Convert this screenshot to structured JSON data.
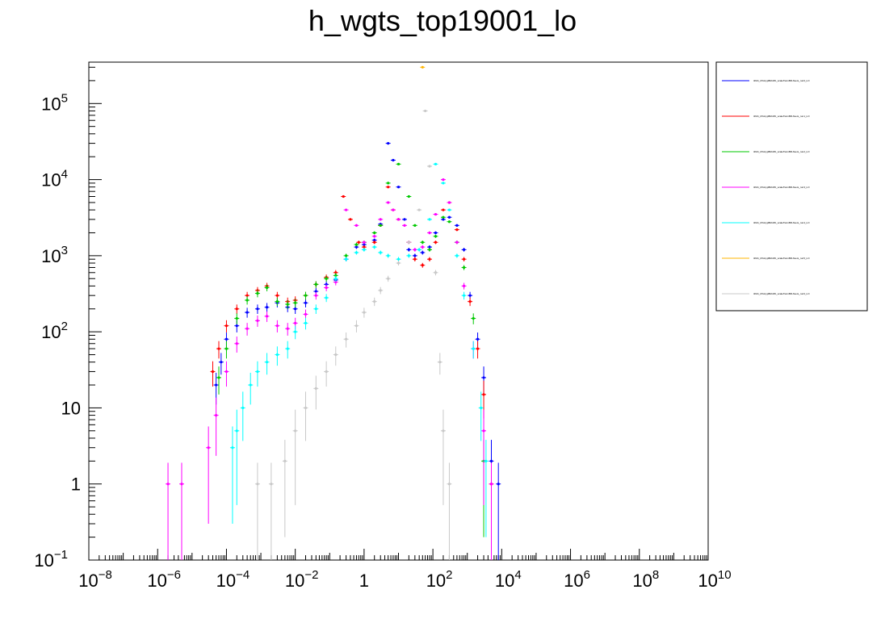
{
  "title": "h_wgts_top19001_lo",
  "chart_data": {
    "type": "scatter",
    "title": "h_wgts_top19001_lo",
    "xscale": "log",
    "yscale": "log",
    "xlim": [
      1e-08,
      10000000000.0
    ],
    "ylim": [
      0.1,
      350000
    ],
    "x_tick_labels": [
      {
        "base": "10",
        "exp": "−8"
      },
      {
        "base": "10",
        "exp": "−6"
      },
      {
        "base": "10",
        "exp": "−4"
      },
      {
        "base": "10",
        "exp": "−2"
      },
      {
        "base": "1",
        "exp": ""
      },
      {
        "base": "10",
        "exp": "2"
      },
      {
        "base": "10",
        "exp": "4"
      },
      {
        "base": "10",
        "exp": "6"
      },
      {
        "base": "10",
        "exp": "8"
      },
      {
        "base": "10",
        "exp": "10"
      }
    ],
    "y_tick_labels": [
      {
        "base": "10",
        "exp": "−1"
      },
      {
        "base": "1",
        "exp": ""
      },
      {
        "base": "10",
        "exp": ""
      },
      {
        "base": "10",
        "exp": "2"
      },
      {
        "base": "10",
        "exp": "3"
      },
      {
        "base": "10",
        "exp": "4"
      },
      {
        "base": "10",
        "exp": "5"
      }
    ],
    "legend_position": "right",
    "legend_entries": [
      "tthbb_ttToHypBbbWit_scaleTwimBR-6sets_run0_LO",
      "tthbb_ttToHypBbbWit_scaleTwimBR-6sets_run1_LO",
      "tthbb_ttToHypBbbWit_scaleTwimBR-6sets_run2_LO",
      "tthbb_ttToHypBbbWit_scaleTwimBR-6sets_run3_LO",
      "tthbb_ttToHypBbbWit_scaleTwimBR-6sets_run4_LO",
      "tthbb_ttToHypBbbWit_scaleTwimBR-6sets_run5_LO",
      "tthbb_ttToHypBbbWit_scaleTwimBR-6sets_run6_LO"
    ],
    "series": [
      {
        "color": "#0000ff",
        "points": [
          [
            5e-05,
            20
          ],
          [
            7e-05,
            40
          ],
          [
            0.0001,
            80
          ],
          [
            0.0002,
            120
          ],
          [
            0.0004,
            180
          ],
          [
            0.0008,
            200
          ],
          [
            0.0015,
            210
          ],
          [
            0.003,
            240
          ],
          [
            0.006,
            210
          ],
          [
            0.01,
            200
          ],
          [
            0.02,
            240
          ],
          [
            0.04,
            340
          ],
          [
            0.08,
            420
          ],
          [
            0.15,
            480
          ],
          [
            0.3,
            900
          ],
          [
            0.6,
            1300
          ],
          [
            1,
            1400
          ],
          [
            2,
            1600
          ],
          [
            3,
            2600
          ],
          [
            5,
            30000
          ],
          [
            7,
            18000
          ],
          [
            10,
            8000
          ],
          [
            15,
            3000
          ],
          [
            20,
            1200
          ],
          [
            30,
            1000
          ],
          [
            50,
            1100
          ],
          [
            80,
            1300
          ],
          [
            120,
            2000
          ],
          [
            200,
            3000
          ],
          [
            300,
            3200
          ],
          [
            500,
            2500
          ],
          [
            800,
            1200
          ],
          [
            1200,
            300
          ],
          [
            2000,
            80
          ],
          [
            3000,
            25
          ],
          [
            5000,
            2
          ],
          [
            8000,
            1
          ]
        ]
      },
      {
        "color": "#ff0000",
        "points": [
          [
            4e-05,
            30
          ],
          [
            6e-05,
            60
          ],
          [
            0.0001,
            120
          ],
          [
            0.0002,
            200
          ],
          [
            0.0004,
            300
          ],
          [
            0.0008,
            350
          ],
          [
            0.0015,
            400
          ],
          [
            0.003,
            300
          ],
          [
            0.006,
            250
          ],
          [
            0.01,
            260
          ],
          [
            0.02,
            300
          ],
          [
            0.04,
            420
          ],
          [
            0.08,
            520
          ],
          [
            0.15,
            600
          ],
          [
            0.25,
            6000
          ],
          [
            0.4,
            3000
          ],
          [
            0.7,
            1500
          ],
          [
            1,
            1300
          ],
          [
            2,
            1500
          ],
          [
            3,
            2500
          ],
          [
            5,
            8000
          ],
          [
            7,
            4000
          ],
          [
            10,
            3000
          ],
          [
            20,
            1500
          ],
          [
            30,
            900
          ],
          [
            50,
            750
          ],
          [
            80,
            900
          ],
          [
            120,
            1500
          ],
          [
            200,
            4000
          ],
          [
            300,
            5000
          ],
          [
            500,
            2200
          ],
          [
            800,
            900
          ],
          [
            1200,
            250
          ],
          [
            2000,
            60
          ],
          [
            3000,
            15
          ],
          [
            5000,
            1
          ]
        ]
      },
      {
        "color": "#00c800",
        "points": [
          [
            6e-05,
            25
          ],
          [
            0.0001,
            60
          ],
          [
            0.0002,
            150
          ],
          [
            0.0004,
            260
          ],
          [
            0.0008,
            320
          ],
          [
            0.0015,
            380
          ],
          [
            0.003,
            250
          ],
          [
            0.006,
            230
          ],
          [
            0.01,
            240
          ],
          [
            0.02,
            300
          ],
          [
            0.04,
            420
          ],
          [
            0.08,
            500
          ],
          [
            0.15,
            550
          ],
          [
            0.3,
            1000
          ],
          [
            0.6,
            1400
          ],
          [
            1,
            1500
          ],
          [
            2,
            2000
          ],
          [
            3,
            2500
          ],
          [
            5,
            9000
          ],
          [
            10,
            16000
          ],
          [
            20,
            6000
          ],
          [
            30,
            2500
          ],
          [
            50,
            1500
          ],
          [
            80,
            1200
          ],
          [
            120,
            1800
          ],
          [
            200,
            3200
          ],
          [
            300,
            2800
          ],
          [
            500,
            1500
          ],
          [
            800,
            700
          ],
          [
            1500,
            150
          ],
          [
            3000,
            2
          ]
        ]
      },
      {
        "color": "#ff00ff",
        "points": [
          [
            2e-06,
            1
          ],
          [
            5e-06,
            1
          ],
          [
            3e-05,
            3
          ],
          [
            5e-05,
            8
          ],
          [
            0.0001,
            30
          ],
          [
            0.0002,
            70
          ],
          [
            0.0004,
            110
          ],
          [
            0.0008,
            140
          ],
          [
            0.0015,
            160
          ],
          [
            0.003,
            120
          ],
          [
            0.006,
            110
          ],
          [
            0.01,
            130
          ],
          [
            0.02,
            170
          ],
          [
            0.04,
            300
          ],
          [
            0.08,
            380
          ],
          [
            0.15,
            450
          ],
          [
            0.3,
            4000
          ],
          [
            0.6,
            2500
          ],
          [
            1,
            1500
          ],
          [
            2,
            1800
          ],
          [
            3,
            3000
          ],
          [
            5,
            5000
          ],
          [
            7,
            4000
          ],
          [
            10,
            3000
          ],
          [
            15,
            2500
          ],
          [
            20,
            1500
          ],
          [
            30,
            1200
          ],
          [
            50,
            1300
          ],
          [
            80,
            2000
          ],
          [
            120,
            3500
          ],
          [
            200,
            10000
          ],
          [
            300,
            5000
          ],
          [
            500,
            1500
          ],
          [
            800,
            400
          ],
          [
            1500,
            60
          ],
          [
            3000,
            5
          ],
          [
            5000,
            1
          ]
        ]
      },
      {
        "color": "#00ffff",
        "points": [
          [
            0.00015,
            3
          ],
          [
            0.0002,
            5
          ],
          [
            0.0003,
            10
          ],
          [
            0.0005,
            20
          ],
          [
            0.0008,
            30
          ],
          [
            0.0015,
            40
          ],
          [
            0.003,
            50
          ],
          [
            0.006,
            60
          ],
          [
            0.01,
            100
          ],
          [
            0.02,
            130
          ],
          [
            0.04,
            200
          ],
          [
            0.08,
            280
          ],
          [
            0.15,
            500
          ],
          [
            0.3,
            900
          ],
          [
            0.6,
            1100
          ],
          [
            1,
            1200
          ],
          [
            2,
            1300
          ],
          [
            3,
            1100
          ],
          [
            5,
            1000
          ],
          [
            10,
            900
          ],
          [
            20,
            1000
          ],
          [
            40,
            1200
          ],
          [
            80,
            3000
          ],
          [
            120,
            16000
          ],
          [
            200,
            9000
          ],
          [
            300,
            4000
          ],
          [
            500,
            1000
          ],
          [
            800,
            300
          ],
          [
            1500,
            60
          ],
          [
            2500,
            10
          ],
          [
            3500,
            2
          ]
        ]
      },
      {
        "color": "#ffb400",
        "points": [
          [
            50,
            300000
          ]
        ]
      },
      {
        "color": "#c8c8c8",
        "points": [
          [
            0.0008,
            1
          ],
          [
            0.002,
            1
          ],
          [
            0.005,
            2
          ],
          [
            0.01,
            5
          ],
          [
            0.02,
            10
          ],
          [
            0.04,
            18
          ],
          [
            0.08,
            30
          ],
          [
            0.15,
            50
          ],
          [
            0.3,
            80
          ],
          [
            0.6,
            120
          ],
          [
            1,
            180
          ],
          [
            2,
            250
          ],
          [
            3,
            350
          ],
          [
            5,
            500
          ],
          [
            10,
            800
          ],
          [
            20,
            1500
          ],
          [
            40,
            4000
          ],
          [
            60,
            80000
          ],
          [
            80,
            15000
          ],
          [
            120,
            600
          ],
          [
            160,
            40
          ],
          [
            200,
            5
          ],
          [
            300,
            1
          ]
        ]
      }
    ]
  }
}
